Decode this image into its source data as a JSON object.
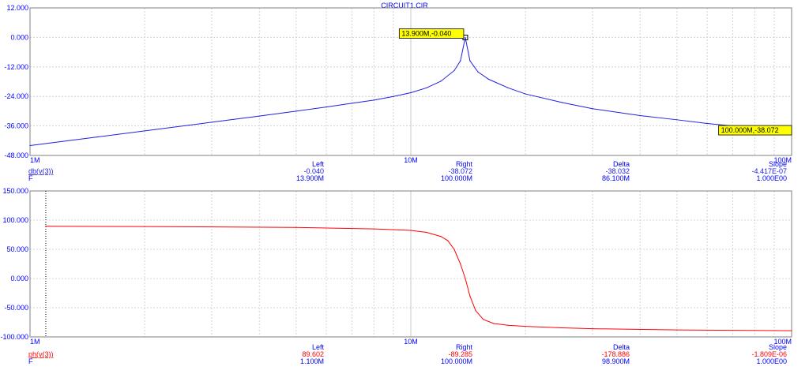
{
  "window_title": "CIRCUIT1.CIR",
  "colors": {
    "magnitude": "#2020e0",
    "phase": "#ff0000",
    "grid": "#c8c8c8",
    "axis_text": "#0000ff",
    "cursor_fill": "#ffff00"
  },
  "chart_data": [
    {
      "type": "line",
      "xscale": "log",
      "xlim": [
        1000000,
        100000000
      ],
      "ylim": [
        -48,
        12
      ],
      "x_ticks": [
        "1M",
        "10M",
        "100M"
      ],
      "y_ticks": [
        "12.000",
        "0.000",
        "-12.000",
        "-24.000",
        "-36.000",
        "-48.000"
      ],
      "grid": true,
      "series": [
        {
          "name": "db(v(3))",
          "x": [
            1000000,
            1500000,
            2000000,
            3000000,
            4000000,
            5000000,
            6000000,
            7000000,
            8000000,
            9000000,
            10000000,
            11000000,
            12000000,
            13000000,
            13500000,
            13900000,
            14300000,
            15000000,
            16000000,
            18000000,
            20000000,
            25000000,
            30000000,
            40000000,
            50000000,
            60000000,
            70000000,
            80000000,
            90000000,
            100000000
          ],
          "y": [
            -44.0,
            -40.5,
            -38.0,
            -34.5,
            -32.0,
            -30.0,
            -28.3,
            -26.8,
            -25.5,
            -24.0,
            -22.5,
            -20.5,
            -17.8,
            -13.5,
            -9.5,
            -0.04,
            -9.5,
            -14.0,
            -17.0,
            -20.5,
            -23.0,
            -26.5,
            -29.0,
            -31.8,
            -33.5,
            -35.0,
            -36.0,
            -36.9,
            -37.5,
            -38.072
          ]
        }
      ],
      "cursor_labels": [
        {
          "text": "13.900M,-0.040",
          "x": 13900000,
          "y": -0.04
        },
        {
          "text": "100.000M,-38.072",
          "x": 100000000,
          "y": -38.072
        }
      ],
      "readout": {
        "headers": [
          "Left",
          "Right",
          "Delta",
          "Slope"
        ],
        "rows": [
          {
            "label": "db(v(3))",
            "values": [
              "-0.040",
              "-38.072",
              "-38.032",
              "-4.417E-07"
            ]
          },
          {
            "label": "F",
            "values": [
              "13.900M",
              "100.000M",
              "86.100M",
              "1.000E00"
            ]
          }
        ]
      }
    },
    {
      "type": "line",
      "xscale": "log",
      "xlim": [
        1000000,
        100000000
      ],
      "ylim": [
        -100,
        150
      ],
      "x_ticks": [
        "1M",
        "10M",
        "100M"
      ],
      "y_ticks": [
        "150.000",
        "100.000",
        "50.000",
        "0.000",
        "-50.000",
        "-100.000"
      ],
      "grid": true,
      "series": [
        {
          "name": "ph(v(3))",
          "x": [
            1100000,
            2000000,
            5000000,
            8000000,
            10000000,
            11000000,
            12000000,
            12500000,
            13000000,
            13500000,
            13900000,
            14300000,
            14800000,
            15500000,
            16500000,
            18000000,
            20000000,
            25000000,
            30000000,
            50000000,
            100000000
          ],
          "y": [
            89.602,
            89.0,
            87.5,
            85.0,
            82.5,
            79.0,
            72.0,
            65.0,
            50.0,
            25.0,
            0.0,
            -30.0,
            -55.0,
            -70.0,
            -77.0,
            -80.0,
            -82.0,
            -84.5,
            -86.0,
            -88.0,
            -89.285
          ]
        }
      ],
      "readout": {
        "headers": [
          "Left",
          "Right",
          "Delta",
          "Slope"
        ],
        "rows": [
          {
            "label": "ph(v(3))",
            "values": [
              "89.602",
              "-89.285",
              "-178.886",
              "-1.809E-06"
            ]
          },
          {
            "label": "F",
            "values": [
              "1.100M",
              "100.000M",
              "98.900M",
              "1.000E00"
            ]
          }
        ]
      }
    }
  ]
}
